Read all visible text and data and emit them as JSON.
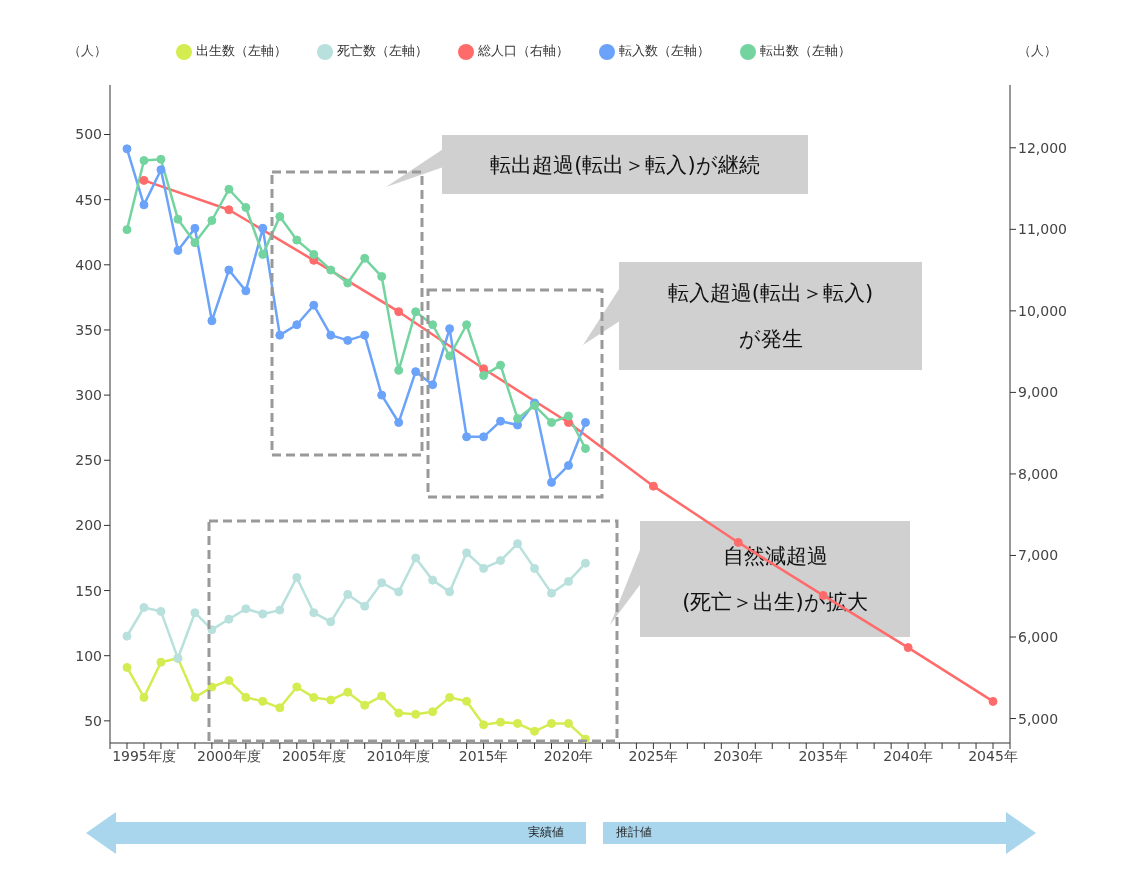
{
  "chart_data": {
    "type": "line",
    "ylabel": "（人）",
    "y2label": "（人）",
    "x": [
      1994,
      1995,
      1996,
      1997,
      1998,
      1999,
      2000,
      2001,
      2002,
      2003,
      2004,
      2005,
      2006,
      2007,
      2008,
      2009,
      2010,
      2011,
      2012,
      2013,
      2014,
      2015,
      2016,
      2017,
      2018,
      2019,
      2020,
      2021
    ],
    "series": [
      {
        "name": "総人口（右軸）",
        "color": "#ff6b6b",
        "axis": "y2",
        "x": [
          1995,
          2000,
          2005,
          2010,
          2015,
          2020,
          2025,
          2030,
          2035,
          2040,
          2045
        ],
        "values": [
          11600,
          11240,
          10620,
          9990,
          9290,
          8630,
          7850,
          7160,
          6510,
          5870,
          5210
        ]
      },
      {
        "name": "出生数（左軸）",
        "color": "#d4ec50",
        "values": [
          91,
          68,
          95,
          98,
          68,
          76,
          81,
          68,
          65,
          60,
          76,
          68,
          66,
          72,
          62,
          69,
          56,
          55,
          57,
          68,
          65,
          47,
          49,
          48,
          42,
          48,
          48,
          36
        ]
      },
      {
        "name": "死亡数（左軸）",
        "color": "#b8e0dc",
        "values": [
          115,
          137,
          134,
          98,
          133,
          120,
          128,
          136,
          132,
          135,
          160,
          133,
          126,
          147,
          138,
          156,
          149,
          175,
          158,
          149,
          179,
          167,
          173,
          186,
          167,
          148,
          157,
          171
        ]
      },
      {
        "name": "転入数（左軸）",
        "color": "#6ba3fa",
        "values": [
          489,
          446,
          473,
          411,
          428,
          357,
          396,
          380,
          428,
          346,
          354,
          369,
          346,
          342,
          346,
          300,
          279,
          318,
          308,
          351,
          268,
          268,
          280,
          277,
          294,
          233,
          246,
          279
        ]
      },
      {
        "name": "転出数（左軸）",
        "color": "#74d4a0",
        "values": [
          427,
          480,
          481,
          435,
          417,
          434,
          458,
          444,
          408,
          437,
          419,
          408,
          396,
          386,
          405,
          391,
          319,
          364,
          354,
          330,
          354,
          315,
          323,
          282,
          292,
          279,
          284,
          259
        ]
      }
    ],
    "xlim": [
      1993,
      2046
    ],
    "xticks": [
      {
        "value": 1993,
        "label": null
      },
      {
        "value": 1994,
        "label": null
      },
      {
        "value": 1995,
        "label": "1995年度"
      },
      {
        "value": 1996,
        "label": null
      },
      {
        "value": 1997,
        "label": null
      },
      {
        "value": 1998,
        "label": null
      },
      {
        "value": 1999,
        "label": null
      },
      {
        "value": 2000,
        "label": "2000年度"
      },
      {
        "value": 2001,
        "label": null
      },
      {
        "value": 2002,
        "label": null
      },
      {
        "value": 2003,
        "label": null
      },
      {
        "value": 2004,
        "label": null
      },
      {
        "value": 2005,
        "label": "2005年度"
      },
      {
        "value": 2006,
        "label": null
      },
      {
        "value": 2007,
        "label": null
      },
      {
        "value": 2008,
        "label": null
      },
      {
        "value": 2009,
        "label": null
      },
      {
        "value": 2010,
        "label": "2010年度"
      },
      {
        "value": 2011,
        "label": null
      },
      {
        "value": 2012,
        "label": null
      },
      {
        "value": 2013,
        "label": null
      },
      {
        "value": 2014,
        "label": null
      },
      {
        "value": 2015,
        "label": "2015年"
      },
      {
        "value": 2016,
        "label": null
      },
      {
        "value": 2017,
        "label": null
      },
      {
        "value": 2018,
        "label": null
      },
      {
        "value": 2019,
        "label": null
      },
      {
        "value": 2020,
        "label": "2020年"
      },
      {
        "value": 2021,
        "label": null
      },
      {
        "value": 2022,
        "label": null
      },
      {
        "value": 2023,
        "label": null
      },
      {
        "value": 2024,
        "label": null
      },
      {
        "value": 2025,
        "label": "2025年"
      },
      {
        "value": 2026,
        "label": null
      },
      {
        "value": 2027,
        "label": null
      },
      {
        "value": 2028,
        "label": null
      },
      {
        "value": 2029,
        "label": null
      },
      {
        "value": 2030,
        "label": "2030年"
      },
      {
        "value": 2031,
        "label": null
      },
      {
        "value": 2032,
        "label": null
      },
      {
        "value": 2033,
        "label": null
      },
      {
        "value": 2034,
        "label": null
      },
      {
        "value": 2035,
        "label": "2035年"
      },
      {
        "value": 2036,
        "label": null
      },
      {
        "value": 2037,
        "label": null
      },
      {
        "value": 2038,
        "label": null
      },
      {
        "value": 2039,
        "label": null
      },
      {
        "value": 2040,
        "label": "2040年"
      },
      {
        "value": 2041,
        "label": null
      },
      {
        "value": 2042,
        "label": null
      },
      {
        "value": 2043,
        "label": null
      },
      {
        "value": 2044,
        "label": null
      },
      {
        "value": 2045,
        "label": "2045年"
      },
      {
        "value": 2046,
        "label": null
      }
    ],
    "ylim": [
      33,
      538
    ],
    "yticks": [
      50,
      100,
      150,
      200,
      250,
      300,
      350,
      400,
      450,
      500
    ],
    "y2lim": [
      4700,
      12770
    ],
    "y2ticks": [
      {
        "value": 5000,
        "label": "5,000"
      },
      {
        "value": 6000,
        "label": "6,000"
      },
      {
        "value": 7000,
        "label": "7,000"
      },
      {
        "value": 8000,
        "label": "8,000"
      },
      {
        "value": 9000,
        "label": "9,000"
      },
      {
        "value": 10000,
        "label": "10,000"
      },
      {
        "value": 11000,
        "label": "11,000"
      },
      {
        "value": 12000,
        "label": "12,000"
      }
    ],
    "grid": false,
    "legend": "top",
    "marker": "circle",
    "line_style": "solid",
    "annotations": [
      "転出超過(転出＞転入)が継続",
      "転入超過(転出＞転入)\nが発生",
      "自然減超過\n(死亡＞出生)が拡大",
      "実績値",
      "推計値"
    ]
  }
}
